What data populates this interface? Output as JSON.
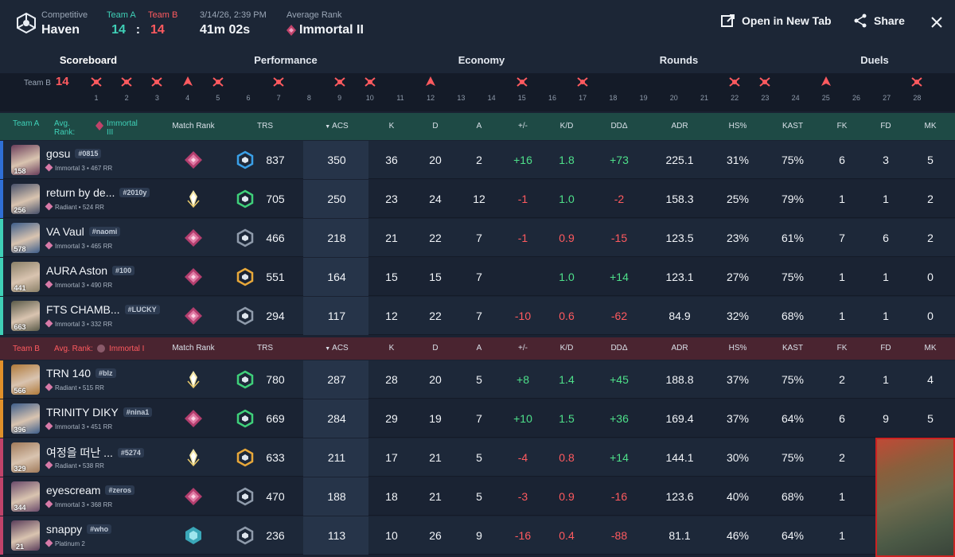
{
  "header": {
    "mode_label": "Competitive",
    "map": "Haven",
    "teamA_label": "Team A",
    "teamB_label": "Team B",
    "teamA_score": "14",
    "score_sep": ":",
    "teamB_score": "14",
    "datetime": "3/14/26, 2:39 PM",
    "duration": "41m 02s",
    "avg_rank_label": "Average Rank",
    "avg_rank": "Immortal II",
    "open_new_tab": "Open in New Tab",
    "share": "Share"
  },
  "tabs": [
    "Scoreboard",
    "Performance",
    "Economy",
    "Rounds",
    "Duels"
  ],
  "rounds": {
    "team_label": "Team B",
    "score": "14",
    "numbers": [
      "1",
      "2",
      "3",
      "4",
      "5",
      "6",
      "7",
      "8",
      "9",
      "10",
      "11",
      "12",
      "13",
      "14",
      "15",
      "16",
      "17",
      "18",
      "19",
      "20",
      "21",
      "22",
      "23",
      "24",
      "25",
      "26",
      "27",
      "28"
    ],
    "markers": [
      "skull",
      "skull",
      "skull",
      "spike",
      "skull",
      "",
      "skull",
      "",
      "skull",
      "skull",
      "",
      "spike",
      "",
      "",
      "skull",
      "",
      "skull",
      "",
      "",
      "",
      "",
      "skull",
      "skull",
      "",
      "spike",
      "",
      "",
      "skull"
    ]
  },
  "columns": [
    "Match Rank",
    "TRS",
    "ACS",
    "K",
    "D",
    "A",
    "+/-",
    "K/D",
    "DDΔ",
    "ADR",
    "HS%",
    "KAST",
    "FK",
    "FD",
    "MK"
  ],
  "teamA": {
    "label": "Team A",
    "avg_rank_label": "Avg. Rank:",
    "avg_rank": "Immortal III",
    "players": [
      {
        "name": "gosu",
        "tag": "#0815",
        "rank": "Immortal 3 • 467 RR",
        "level": "158",
        "mr": "immortal",
        "trs_tier": "blue",
        "trs": "837",
        "acs": "350",
        "k": "36",
        "d": "20",
        "a": "2",
        "pm": "+16",
        "kd": "1.8",
        "dd": "+73",
        "adr": "225.1",
        "hs": "31%",
        "kast": "75%",
        "fk": "6",
        "fd": "3",
        "mk": "5",
        "stripe": "#2f6fd6",
        "avatar": "#6a3d5a"
      },
      {
        "name": "return by de...",
        "tag": "#2010y",
        "rank": "Radiant • 524 RR",
        "level": "256",
        "mr": "radiant",
        "trs_tier": "green",
        "trs": "705",
        "acs": "250",
        "k": "23",
        "d": "24",
        "a": "12",
        "pm": "-1",
        "kd": "1.0",
        "dd": "-2",
        "adr": "158.3",
        "hs": "25%",
        "kast": "79%",
        "fk": "1",
        "fd": "1",
        "mk": "2",
        "stripe": "#2f6fd6",
        "avatar": "#47506a"
      },
      {
        "name": "VA Vaul",
        "tag": "#naomi",
        "rank": "Immortal 3 • 465 RR",
        "level": "578",
        "mr": "immortal",
        "trs_tier": "gray",
        "trs": "466",
        "acs": "218",
        "k": "21",
        "d": "22",
        "a": "7",
        "pm": "-1",
        "kd": "0.9",
        "dd": "-15",
        "adr": "123.5",
        "hs": "23%",
        "kast": "61%",
        "fk": "7",
        "fd": "6",
        "mk": "2",
        "stripe": "#3fd0b7",
        "avatar": "#3d5d8a"
      },
      {
        "name": "AURA Aston",
        "tag": "#100",
        "rank": "Immortal 3 • 490 RR",
        "level": "441",
        "mr": "immortal",
        "trs_tier": "gold",
        "trs": "551",
        "acs": "164",
        "k": "15",
        "d": "15",
        "a": "7",
        "pm": "",
        "kd": "1.0",
        "dd": "+14",
        "adr": "123.1",
        "hs": "27%",
        "kast": "75%",
        "fk": "1",
        "fd": "1",
        "mk": "0",
        "stripe": "#3fd0b7",
        "avatar": "#8a8068"
      },
      {
        "name": "FTS CHAMB...",
        "tag": "#LUCKY",
        "rank": "Immortal 3 • 332 RR",
        "level": "663",
        "mr": "immortal",
        "trs_tier": "gray",
        "trs": "294",
        "acs": "117",
        "k": "12",
        "d": "22",
        "a": "7",
        "pm": "-10",
        "kd": "0.6",
        "dd": "-62",
        "adr": "84.9",
        "hs": "32%",
        "kast": "68%",
        "fk": "1",
        "fd": "1",
        "mk": "0",
        "stripe": "#3fd0b7",
        "avatar": "#5a5a48"
      }
    ]
  },
  "teamB": {
    "label": "Team B",
    "avg_rank_label": "Avg. Rank:",
    "avg_rank": "Immortal I",
    "players": [
      {
        "name": "TRN 140",
        "tag": "#blz",
        "rank": "Radiant • 515 RR",
        "level": "566",
        "mr": "radiant",
        "trs_tier": "green",
        "trs": "780",
        "acs": "287",
        "k": "28",
        "d": "20",
        "a": "5",
        "pm": "+8",
        "kd": "1.4",
        "dd": "+45",
        "adr": "188.8",
        "hs": "37%",
        "kast": "75%",
        "fk": "2",
        "fd": "1",
        "mk": "4",
        "stripe": "#e0902a",
        "avatar": "#b07a3a"
      },
      {
        "name": "TRINITY DIKY",
        "tag": "#nina1",
        "rank": "Immortal 3 • 451 RR",
        "level": "396",
        "mr": "immortal",
        "trs_tier": "green",
        "trs": "669",
        "acs": "284",
        "k": "29",
        "d": "19",
        "a": "7",
        "pm": "+10",
        "kd": "1.5",
        "dd": "+36",
        "adr": "169.4",
        "hs": "37%",
        "kast": "64%",
        "fk": "6",
        "fd": "9",
        "mk": "5",
        "stripe": "#e0902a",
        "avatar": "#3d5d8a"
      },
      {
        "name": "여정을 떠난 ...",
        "tag": "#5274",
        "rank": "Radiant • 538 RR",
        "level": "329",
        "mr": "radiant",
        "trs_tier": "gold",
        "trs": "633",
        "acs": "211",
        "k": "17",
        "d": "21",
        "a": "5",
        "pm": "-4",
        "kd": "0.8",
        "dd": "+14",
        "adr": "144.1",
        "hs": "30%",
        "kast": "75%",
        "fk": "2",
        "fd": "",
        "mk": "",
        "stripe": "#c0436a",
        "avatar": "#a07a5a"
      },
      {
        "name": "eyescream",
        "tag": "#zeros",
        "rank": "Immortal 3 • 368 RR",
        "level": "344",
        "mr": "immortal",
        "trs_tier": "gray",
        "trs": "470",
        "acs": "188",
        "k": "18",
        "d": "21",
        "a": "5",
        "pm": "-3",
        "kd": "0.9",
        "dd": "-16",
        "adr": "123.6",
        "hs": "40%",
        "kast": "68%",
        "fk": "1",
        "fd": "",
        "mk": "",
        "stripe": "#c0436a",
        "avatar": "#6a4a6a"
      },
      {
        "name": "snappy",
        "tag": "#who",
        "rank": "Platinum 2",
        "level": "21",
        "mr": "platinum",
        "trs_tier": "gray",
        "trs": "236",
        "acs": "113",
        "k": "10",
        "d": "26",
        "a": "9",
        "pm": "-16",
        "kd": "0.4",
        "dd": "-88",
        "adr": "81.1",
        "hs": "46%",
        "kast": "64%",
        "fk": "1",
        "fd": "",
        "mk": "",
        "stripe": "#c0436a",
        "avatar": "#5a3d5a"
      }
    ]
  },
  "colors": {
    "teamA": "#3fd0b7",
    "teamB": "#ff5a5f",
    "positive": "#4ee08a",
    "negative": "#ff5a5f"
  }
}
